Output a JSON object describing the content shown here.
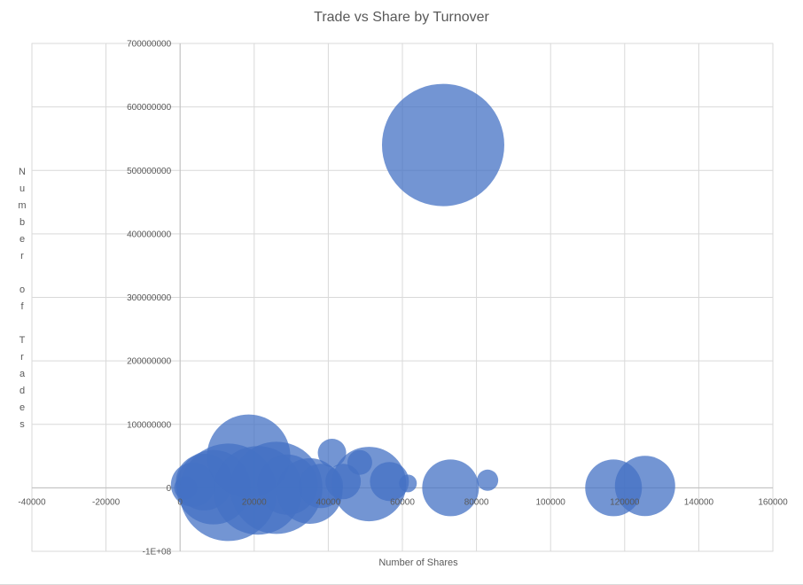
{
  "chart_data": {
    "type": "bubble",
    "title": "Trade vs Share by Turnover",
    "xlabel": "Number of Shares",
    "ylabel": "Number of Trades",
    "xlim": [
      -40000,
      160000
    ],
    "ylim": [
      -100000000,
      700000000
    ],
    "x_ticks": [
      "-40000",
      "-20000",
      "0",
      "20000",
      "40000",
      "60000",
      "80000",
      "100000",
      "120000",
      "140000",
      "160000"
    ],
    "y_ticks": [
      "-1E+08",
      "0",
      "100000000",
      "200000000",
      "300000000",
      "400000000",
      "500000000",
      "600000000",
      "700000000"
    ],
    "grid": true,
    "bubble_color": "#4472c4",
    "series": [
      {
        "points": [
          {
            "x": 1500,
            "y": 0,
            "size": 13
          },
          {
            "x": 3500,
            "y": 5000000,
            "size": 25
          },
          {
            "x": 6500,
            "y": 9000000,
            "size": 32
          },
          {
            "x": 9000,
            "y": 1000000,
            "size": 42
          },
          {
            "x": 13000,
            "y": -7000000,
            "size": 55
          },
          {
            "x": 18500,
            "y": 50000000,
            "size": 47
          },
          {
            "x": 21000,
            "y": -4000000,
            "size": 50
          },
          {
            "x": 26000,
            "y": 0,
            "size": 52
          },
          {
            "x": 29000,
            "y": 5000000,
            "size": 34
          },
          {
            "x": 35000,
            "y": -5000000,
            "size": 37
          },
          {
            "x": 38000,
            "y": 3000000,
            "size": 25
          },
          {
            "x": 41000,
            "y": 55000000,
            "size": 16
          },
          {
            "x": 44000,
            "y": 10000000,
            "size": 20
          },
          {
            "x": 48500,
            "y": 40000000,
            "size": 14
          },
          {
            "x": 51000,
            "y": 6000000,
            "size": 42
          },
          {
            "x": 56500,
            "y": 10000000,
            "size": 22
          },
          {
            "x": 61500,
            "y": 7000000,
            "size": 10
          },
          {
            "x": 73000,
            "y": 0,
            "size": 32
          },
          {
            "x": 71000,
            "y": 540000000,
            "size": 69
          },
          {
            "x": 83000,
            "y": 12000000,
            "size": 12
          },
          {
            "x": 117000,
            "y": 0,
            "size": 32
          },
          {
            "x": 125500,
            "y": 3000000,
            "size": 34
          }
        ]
      }
    ]
  }
}
